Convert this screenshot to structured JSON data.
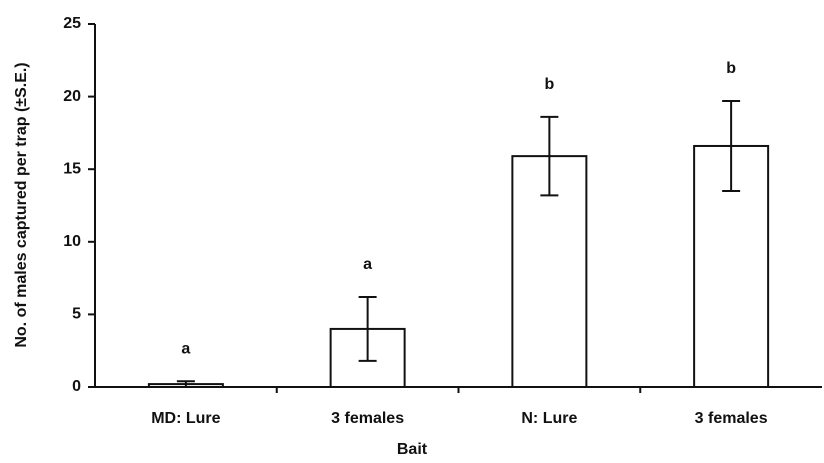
{
  "chart_data": {
    "type": "bar",
    "categories": [
      "MD: Lure",
      "3 females",
      "N: Lure",
      "3 females"
    ],
    "values": [
      0.2,
      4.0,
      15.9,
      16.6
    ],
    "errors": [
      0.2,
      2.2,
      2.7,
      3.1
    ],
    "letters": [
      "a",
      "a",
      "b",
      "b"
    ],
    "color": "#ffffff",
    "xlabel": "Bait",
    "ylabel": "No. of males captured per trap (±S.E.)",
    "ylim": [
      0,
      25
    ],
    "yticks": [
      0,
      5,
      10,
      15,
      20,
      25
    ],
    "grid": false
  }
}
